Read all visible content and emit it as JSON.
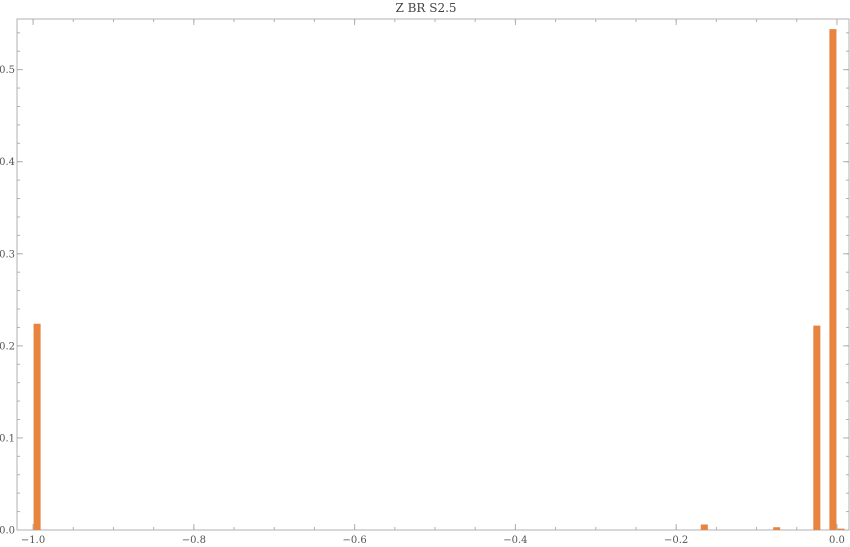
{
  "chart_data": {
    "type": "bar",
    "title": "Z BR S2.5",
    "xlabel": "",
    "ylabel": "",
    "xlim": [
      -1.02,
      0.015
    ],
    "ylim": [
      0,
      0.555
    ],
    "bin_width": 0.01,
    "x_ticks": [
      -1.0,
      -0.8,
      -0.6,
      -0.4,
      -0.2,
      0.0
    ],
    "x_tick_labels": [
      "−1.0",
      "−0.8",
      "−0.6",
      "−0.4",
      "−0.2",
      "0.0"
    ],
    "x_minor_step": 0.05,
    "y_ticks": [
      0.0,
      0.1,
      0.2,
      0.3,
      0.4,
      0.5
    ],
    "y_tick_labels": [
      "0.0",
      "0.1",
      "0.2",
      "0.3",
      "0.4",
      "0.5"
    ],
    "y_minor_step": 0.02,
    "bars": [
      {
        "x0": -1.0,
        "x1": -0.99,
        "value": 0.224
      },
      {
        "x0": -0.17,
        "x1": -0.16,
        "value": 0.006
      },
      {
        "x0": -0.08,
        "x1": -0.07,
        "value": 0.003
      },
      {
        "x0": -0.03,
        "x1": -0.02,
        "value": 0.222
      },
      {
        "x0": -0.01,
        "x1": 0.0,
        "value": 0.544
      },
      {
        "x0": 0.0,
        "x1": 0.01,
        "value": 0.0015
      }
    ],
    "bar_color": "#E68440",
    "grid": false,
    "legend": "none"
  }
}
